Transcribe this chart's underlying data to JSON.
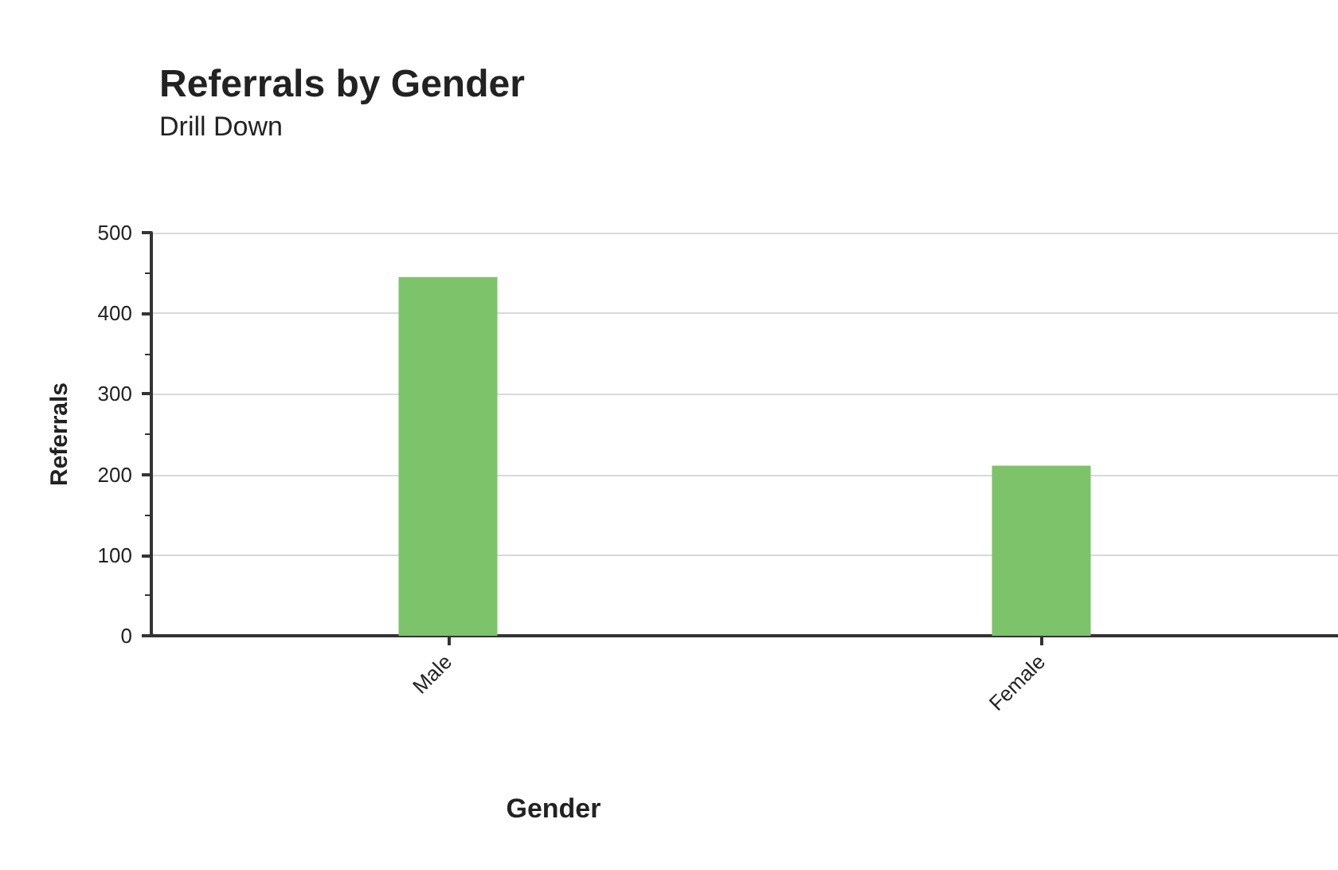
{
  "chart_data": {
    "type": "bar",
    "title": "Referrals by Gender",
    "subtitle": "Drill Down",
    "xlabel": "Gender",
    "ylabel": "Referrals",
    "categories": [
      "Male",
      "Female"
    ],
    "values": [
      445,
      211
    ],
    "color": "#7cc36a",
    "ylim": [
      0,
      500
    ],
    "yticks": [
      0,
      100,
      200,
      300,
      400,
      500
    ],
    "grid": "y"
  }
}
